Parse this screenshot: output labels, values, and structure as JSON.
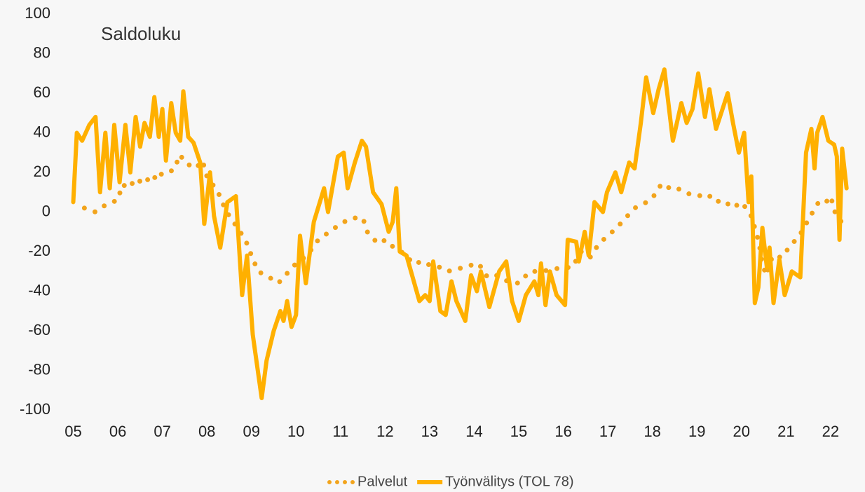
{
  "chart_data": {
    "type": "line",
    "annotation": "Saldoluku",
    "xlim": [
      4.85,
      22.6
    ],
    "ylim": [
      -100,
      100
    ],
    "xticks": [
      {
        "value": 5,
        "label": "05"
      },
      {
        "value": 6,
        "label": "06"
      },
      {
        "value": 7,
        "label": "07"
      },
      {
        "value": 8,
        "label": "08"
      },
      {
        "value": 9,
        "label": "09"
      },
      {
        "value": 10,
        "label": "10"
      },
      {
        "value": 11,
        "label": "11"
      },
      {
        "value": 12,
        "label": "12"
      },
      {
        "value": 13,
        "label": "13"
      },
      {
        "value": 14,
        "label": "14"
      },
      {
        "value": 15,
        "label": "15"
      },
      {
        "value": 16,
        "label": "16"
      },
      {
        "value": 17,
        "label": "17"
      },
      {
        "value": 18,
        "label": "18"
      },
      {
        "value": 19,
        "label": "19"
      },
      {
        "value": 20,
        "label": "20"
      },
      {
        "value": 21,
        "label": "21"
      },
      {
        "value": 22,
        "label": "22"
      }
    ],
    "yticks": [
      -100,
      -80,
      -60,
      -40,
      -20,
      0,
      20,
      40,
      60,
      80,
      100
    ],
    "legend": "bottom",
    "series": [
      {
        "name": "Palvelut",
        "color": "#f2a41c",
        "style": "dotted",
        "x": [
          5.25,
          5.5,
          5.75,
          6.0,
          6.1,
          6.25,
          6.4,
          6.6,
          6.75,
          6.9,
          7.0,
          7.25,
          7.4,
          7.5,
          7.75,
          7.9,
          8.0,
          8.25,
          8.4,
          8.5,
          8.75,
          8.9,
          9.0,
          9.15,
          9.4,
          9.6,
          9.8,
          10.0,
          10.25,
          10.5,
          10.75,
          11.0,
          11.25,
          11.5,
          11.6,
          11.75,
          11.9,
          12.0,
          12.2,
          12.5,
          12.6,
          12.9,
          13.0,
          13.25,
          13.4,
          13.6,
          13.9,
          14.1,
          14.3,
          14.5,
          14.75,
          15.0,
          15.25,
          15.5,
          15.75,
          16.0,
          16.2,
          16.4,
          16.6,
          16.8,
          17.0,
          17.2,
          17.4,
          17.6,
          17.8,
          18.0,
          18.2,
          18.3,
          18.5,
          18.7,
          19.0,
          19.25,
          19.4,
          19.6,
          19.8,
          20.0,
          20.2,
          20.3,
          20.4,
          20.45,
          20.55,
          20.7,
          20.9,
          21.1,
          21.3,
          21.5,
          21.7,
          21.8,
          21.9,
          22.0,
          22.1,
          22.3
        ],
        "values": [
          2,
          0,
          4,
          6,
          14,
          12,
          17,
          14,
          19,
          16,
          20,
          21,
          29,
          25,
          22,
          26,
          18,
          10,
          2,
          -2,
          -10,
          -16,
          -22,
          -30,
          -33,
          -36,
          -31,
          -26,
          -22,
          -14,
          -10,
          -6,
          -3,
          -3,
          -10,
          -14,
          -16,
          -14,
          -18,
          -22,
          -26,
          -25,
          -27,
          -28,
          -30,
          -29,
          -27,
          -26,
          -33,
          -32,
          -35,
          -36,
          -30,
          -30,
          -29,
          -28,
          -28,
          -20,
          -23,
          -16,
          -12,
          -8,
          -3,
          2,
          4,
          7,
          14,
          12,
          13,
          10,
          8,
          9,
          5,
          6,
          2,
          5,
          -1,
          -8,
          -16,
          -24,
          -32,
          -22,
          -23,
          -17,
          -12,
          -4,
          4,
          6,
          5,
          8,
          0,
          -7
        ]
      },
      {
        "name": "Työnvälitys (TOL 78)",
        "color": "#ffb000",
        "style": "solid",
        "x": [
          5.0,
          5.08,
          5.2,
          5.36,
          5.5,
          5.6,
          5.72,
          5.82,
          5.92,
          6.04,
          6.17,
          6.28,
          6.4,
          6.5,
          6.6,
          6.72,
          6.82,
          6.92,
          7.0,
          7.08,
          7.2,
          7.3,
          7.4,
          7.47,
          7.58,
          7.7,
          7.85,
          7.94,
          8.07,
          8.16,
          8.3,
          8.46,
          8.65,
          8.79,
          8.9,
          9.03,
          9.23,
          9.34,
          9.5,
          9.65,
          9.72,
          9.8,
          9.9,
          10.0,
          10.09,
          10.22,
          10.4,
          10.63,
          10.72,
          10.94,
          11.07,
          11.16,
          11.32,
          11.48,
          11.57,
          11.73,
          11.92,
          12.08,
          12.17,
          12.25,
          12.33,
          12.48,
          12.77,
          12.9,
          13.0,
          13.08,
          13.24,
          13.36,
          13.49,
          13.6,
          13.8,
          13.93,
          14.06,
          14.15,
          14.34,
          14.56,
          14.72,
          14.85,
          15.0,
          15.16,
          15.35,
          15.44,
          15.5,
          15.6,
          15.7,
          15.85,
          16.04,
          16.1,
          16.29,
          16.35,
          16.48,
          16.57,
          16.7,
          16.89,
          16.98,
          17.17,
          17.3,
          17.48,
          17.6,
          17.74,
          17.86,
          18.02,
          18.14,
          18.27,
          18.46,
          18.65,
          18.77,
          18.9,
          19.03,
          19.18,
          19.28,
          19.43,
          19.69,
          19.81,
          19.94,
          20.06,
          20.16,
          20.22,
          20.3,
          20.38,
          20.47,
          20.57,
          20.63,
          20.72,
          20.85,
          20.97,
          21.13,
          21.32,
          21.45,
          21.57,
          21.64,
          21.7,
          21.82,
          21.95,
          22.08,
          22.14,
          22.2,
          22.26,
          22.36
        ],
        "values": [
          5,
          40,
          36,
          44,
          48,
          10,
          40,
          12,
          44,
          15,
          44,
          20,
          48,
          33,
          45,
          38,
          58,
          38,
          52,
          26,
          55,
          40,
          36,
          61,
          38,
          35,
          25,
          -6,
          20,
          -2,
          -18,
          5,
          8,
          -42,
          -22,
          -62,
          -94,
          -75,
          -60,
          -50,
          -55,
          -45,
          -58,
          -52,
          -12,
          -36,
          -5,
          12,
          0,
          28,
          30,
          12,
          25,
          36,
          33,
          10,
          4,
          -10,
          -5,
          12,
          -20,
          -22,
          -45,
          -42,
          -45,
          -25,
          -50,
          -52,
          -35,
          -45,
          -55,
          -32,
          -40,
          -30,
          -48,
          -30,
          -25,
          -45,
          -55,
          -42,
          -35,
          -42,
          -26,
          -47,
          -30,
          -42,
          -47,
          -14,
          -15,
          -25,
          -10,
          -22,
          5,
          0,
          10,
          20,
          10,
          25,
          22,
          45,
          68,
          50,
          62,
          72,
          36,
          55,
          45,
          52,
          70,
          48,
          62,
          42,
          60,
          45,
          30,
          40,
          5,
          18,
          -46,
          -38,
          -8,
          -28,
          -18,
          -46,
          -24,
          -42,
          -30,
          -33,
          30,
          42,
          22,
          40,
          48,
          36,
          34,
          28,
          -14,
          32,
          12
        ]
      }
    ]
  }
}
